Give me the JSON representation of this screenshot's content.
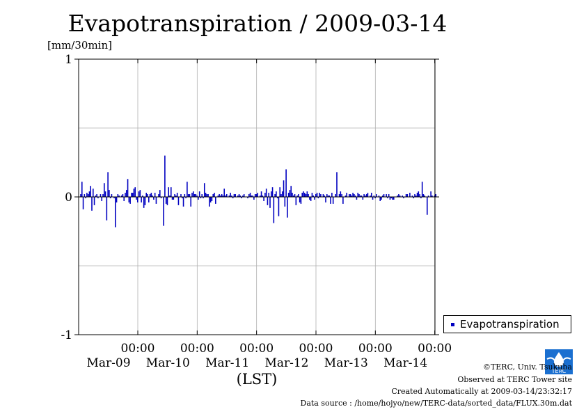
{
  "chart_data": {
    "type": "bar",
    "title": "Evapotranspiration / 2009-03-14",
    "ylabel": "[mm/30min]",
    "xlabel": "(LST)",
    "ylim": [
      -1,
      1
    ],
    "yticks": [
      "1",
      "0",
      "-1"
    ],
    "xticks": [
      {
        "time": "00:00",
        "date": "Mar-09"
      },
      {
        "time": "00:00",
        "date": "Mar-10"
      },
      {
        "time": "00:00",
        "date": "Mar-11"
      },
      {
        "time": "00:00",
        "date": "Mar-12"
      },
      {
        "time": "00:00",
        "date": "Mar-13"
      },
      {
        "time": "00:00",
        "date": "Mar-14"
      }
    ],
    "x_start": "2009-03-08 06:00",
    "x_end": "2009-03-14 24:00",
    "grid": true,
    "legend_position": "right",
    "series": [
      {
        "name": "Evapotranspiration",
        "color": "#0000c0",
        "interval_minutes": 30,
        "values": [
          0.02,
          0.11,
          -0.09,
          0.02,
          -0.01,
          0.03,
          0.02,
          0.04,
          0.08,
          -0.1,
          0.06,
          -0.06,
          0.01,
          0.02,
          -0.01,
          0.0,
          0.02,
          -0.03,
          0.02,
          0.1,
          0.04,
          -0.17,
          0.18,
          0.05,
          -0.01,
          0.02,
          0.0,
          -0.01,
          -0.22,
          -0.04,
          0.02,
          0.01,
          0.0,
          0.01,
          0.02,
          -0.03,
          0.03,
          0.05,
          0.13,
          -0.04,
          -0.05,
          0.03,
          0.03,
          0.06,
          0.07,
          -0.02,
          -0.04,
          0.04,
          0.05,
          -0.04,
          0.01,
          -0.08,
          -0.06,
          0.03,
          0.02,
          -0.04,
          0.02,
          0.03,
          0.01,
          -0.02,
          0.03,
          -0.05,
          0.0,
          0.02,
          0.05,
          -0.01,
          0.0,
          -0.21,
          0.3,
          -0.05,
          -0.06,
          0.07,
          0.01,
          0.07,
          -0.02,
          -0.02,
          0.02,
          0.01,
          0.03,
          -0.06,
          0.0,
          0.02,
          -0.01,
          -0.07,
          0.02,
          -0.01,
          0.11,
          0.02,
          0.02,
          -0.07,
          0.03,
          0.04,
          0.02,
          0.02,
          0.01,
          -0.02,
          0.04,
          -0.01,
          0.02,
          -0.01,
          0.1,
          0.03,
          0.02,
          0.02,
          -0.07,
          -0.04,
          -0.03,
          0.02,
          0.03,
          -0.05,
          0.0,
          0.01,
          0.02,
          0.01,
          0.02,
          0.01,
          0.06,
          0.01,
          0.02,
          0.0,
          0.01,
          0.03,
          0.01,
          -0.01,
          0.02,
          0.02,
          0.0,
          0.01,
          0.02,
          0.01,
          -0.01,
          0.01,
          0.02,
          0.0,
          0.0,
          -0.01,
          0.02,
          0.03,
          0.01,
          0.01,
          -0.02,
          0.02,
          0.02,
          0.03,
          0.0,
          0.01,
          0.04,
          0.01,
          -0.03,
          0.03,
          0.06,
          -0.06,
          0.03,
          -0.08,
          0.04,
          0.07,
          -0.19,
          0.02,
          0.04,
          -0.01,
          -0.14,
          0.07,
          0.02,
          0.04,
          0.12,
          -0.07,
          0.2,
          -0.15,
          0.03,
          0.05,
          0.08,
          0.03,
          0.01,
          0.02,
          -0.06,
          0.01,
          0.02,
          -0.04,
          -0.05,
          0.03,
          0.04,
          0.03,
          0.02,
          0.04,
          0.02,
          -0.02,
          -0.03,
          0.03,
          0.01,
          -0.02,
          0.02,
          0.03,
          -0.01,
          0.03,
          0.02,
          0.0,
          0.02,
          0.01,
          -0.04,
          0.02,
          0.01,
          0.01,
          -0.05,
          0.03,
          -0.05,
          0.0,
          0.02,
          0.18,
          0.0,
          0.02,
          0.04,
          0.02,
          -0.05,
          0.0,
          0.01,
          0.03,
          0.0,
          0.02,
          0.02,
          0.01,
          0.03,
          0.02,
          0.01,
          -0.02,
          0.03,
          0.02,
          0.01,
          0.01,
          -0.02,
          0.02,
          0.01,
          0.02,
          0.03,
          0.0,
          0.01,
          0.03,
          -0.02,
          0.01,
          -0.01,
          0.02,
          0.0,
          0.01,
          -0.03,
          -0.02,
          0.01,
          0.02,
          0.0,
          0.02,
          -0.01,
          0.02,
          -0.02,
          -0.01,
          -0.02,
          -0.02,
          0.0,
          0.0,
          0.01,
          0.02,
          0.01,
          0.0,
          0.01,
          -0.01,
          0.0,
          0.02,
          0.02,
          0.0,
          0.03,
          0.0,
          0.01,
          -0.01,
          0.02,
          0.01,
          0.03,
          0.04,
          0.02,
          -0.01,
          0.11,
          0.02,
          0.01,
          0.0,
          -0.13,
          0.01,
          0.0,
          0.04,
          0.01,
          0.0,
          0.01,
          0.02
        ]
      }
    ]
  },
  "legend": {
    "label": "Evapotranspiration",
    "color": "#0000c0"
  },
  "credits": {
    "line1": "©TERC, Univ. Tsukuba",
    "line2": "Observed at TERC Tower site",
    "line3": "Created Automatically at 2009-03-14/23:32:17",
    "line4": "Data source : /home/hojyo/new/TERC-data/sorted_data/FLUX.30m.dat"
  },
  "logo": {
    "label": "TERC",
    "color": "#1a6fd0"
  }
}
